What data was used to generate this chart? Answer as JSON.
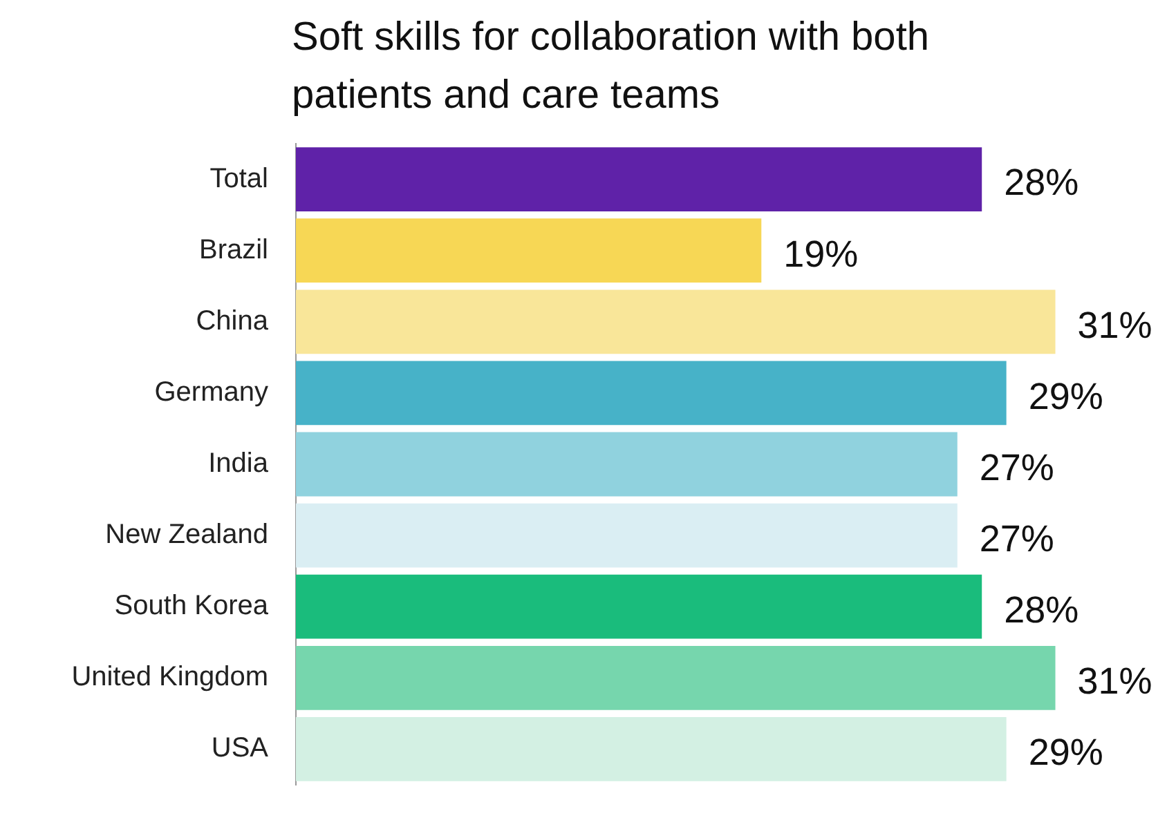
{
  "chart_data": {
    "type": "bar",
    "orientation": "horizontal",
    "title": "Soft skills for collaboration with both patients and care teams",
    "categories": [
      "Total",
      "Brazil",
      "China",
      "Germany",
      "India",
      "New Zealand",
      "South Korea",
      "United Kingdom",
      "USA"
    ],
    "values": [
      28,
      19,
      31,
      29,
      27,
      27,
      28,
      31,
      29
    ],
    "colors": [
      "#5f22a8",
      "#f7d755",
      "#f9e699",
      "#47b2c8",
      "#90d2de",
      "#daeef3",
      "#1abc7c",
      "#76d6ad",
      "#d3f0e3"
    ],
    "value_labels": [
      "28%",
      "19%",
      "31%",
      "29%",
      "27%",
      "27%",
      "28%",
      "31%",
      "29%"
    ],
    "relative": false
  }
}
